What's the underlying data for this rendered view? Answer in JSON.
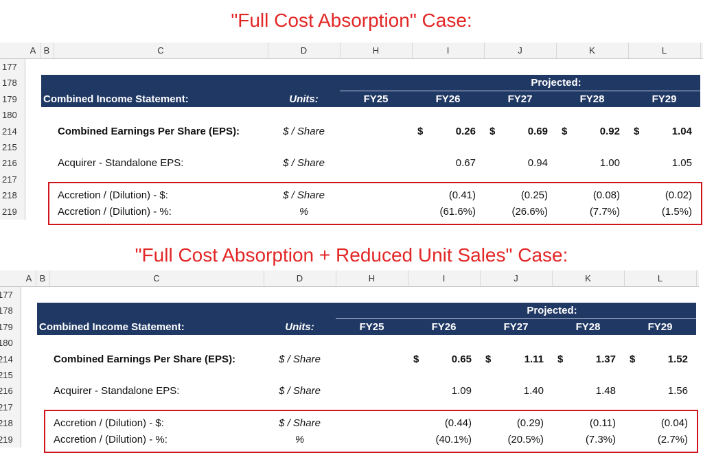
{
  "panels": [
    {
      "title": "\"Full Cost Absorption\" Case:",
      "columns": [
        "A",
        "B",
        "C",
        "D",
        "H",
        "I",
        "J",
        "K",
        "L"
      ],
      "row_numbers": [
        "177",
        "178",
        "179",
        "180",
        "214",
        "215",
        "216",
        "217",
        "218",
        "219"
      ],
      "projected": "Projected:",
      "header": [
        "Combined Income Statement:",
        "Units:",
        "FY25",
        "FY26",
        "FY27",
        "FY28",
        "FY29"
      ],
      "rows": [
        {
          "label": "Combined Earnings Per Share (EPS):",
          "units": "$ / Share",
          "currency": "$",
          "values": [
            "0.26",
            "0.69",
            "0.92",
            "1.04"
          ]
        },
        {
          "label": "Acquirer - Standalone EPS:",
          "units": "$ / Share",
          "values": [
            "0.67",
            "0.94",
            "1.00",
            "1.05"
          ]
        },
        {
          "label": "Accretion / (Dilution) - $:",
          "units": "$ / Share",
          "values": [
            "(0.41)",
            "(0.25)",
            "(0.08)",
            "(0.02)"
          ]
        },
        {
          "label": "Accretion / (Dilution) - %:",
          "units": "%",
          "values": [
            "(61.6%)",
            "(26.6%)",
            "(7.7%)",
            "(1.5%)"
          ]
        }
      ]
    },
    {
      "title": "\"Full Cost Absorption + Reduced Unit Sales\" Case:",
      "columns": [
        "A",
        "B",
        "C",
        "D",
        "H",
        "I",
        "J",
        "K",
        "L"
      ],
      "row_numbers": [
        "177",
        "178",
        "179",
        "180",
        "214",
        "215",
        "216",
        "217",
        "218",
        "219"
      ],
      "projected": "Projected:",
      "header": [
        "Combined Income Statement:",
        "Units:",
        "FY25",
        "FY26",
        "FY27",
        "FY28",
        "FY29"
      ],
      "rows": [
        {
          "label": "Combined Earnings Per Share (EPS):",
          "units": "$ / Share",
          "currency": "$",
          "values": [
            "0.65",
            "1.11",
            "1.37",
            "1.52"
          ]
        },
        {
          "label": "Acquirer - Standalone EPS:",
          "units": "$ / Share",
          "values": [
            "1.09",
            "1.40",
            "1.48",
            "1.56"
          ]
        },
        {
          "label": "Accretion / (Dilution) - $:",
          "units": "$ / Share",
          "values": [
            "(0.44)",
            "(0.29)",
            "(0.11)",
            "(0.04)"
          ]
        },
        {
          "label": "Accretion / (Dilution) - %:",
          "units": "%",
          "values": [
            "(40.1%)",
            "(20.5%)",
            "(7.3%)",
            "(2.7%)"
          ]
        }
      ]
    }
  ]
}
